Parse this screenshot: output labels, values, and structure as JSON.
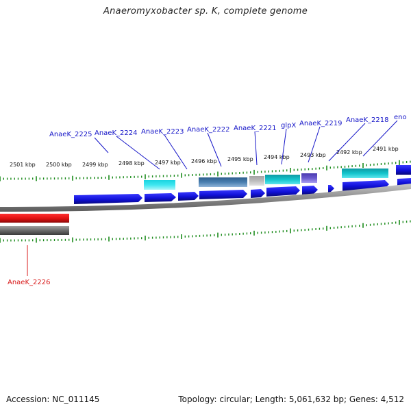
{
  "title": "Anaeromyxobacter sp. K, complete genome",
  "footer": {
    "accession": "Accession: NC_011145",
    "summary": "Topology: circular; Length: 5,061,632 bp; Genes: 4,512"
  },
  "scale_labels": [
    "2501 kbp",
    "2500 kbp",
    "2499 kbp",
    "2498 kbp",
    "2497 kbp",
    "2496 kbp",
    "2495 kbp",
    "2494 kbp",
    "2493 kbp",
    "2492 kbp",
    "2491 kbp"
  ],
  "gene_labels": [
    {
      "text": "AnaeK_2225",
      "strand": "plus"
    },
    {
      "text": "AnaeK_2224",
      "strand": "plus"
    },
    {
      "text": "AnaeK_2223",
      "strand": "plus"
    },
    {
      "text": "AnaeK_2222",
      "strand": "plus"
    },
    {
      "text": "AnaeK_2221",
      "strand": "plus"
    },
    {
      "text": "glpX",
      "strand": "plus"
    },
    {
      "text": "AnaeK_2219",
      "strand": "plus"
    },
    {
      "text": "AnaeK_2218",
      "strand": "plus"
    },
    {
      "text": "eno",
      "strand": "plus"
    },
    {
      "text": "AnaeK_2226",
      "strand": "minus"
    }
  ],
  "colors": {
    "gene_forward": "#1010d8",
    "gene_reverse": "#e01010",
    "label_forward": "#1515c8",
    "label_reverse": "#d81818",
    "tick": "#1a8a1a",
    "backbone": "#8c8c8c",
    "feature_cyan": "#12c4cc",
    "feature_lightcyan": "#3ee6f0",
    "feature_steel": "#4a7fb0",
    "feature_gray": "#b8b8b8",
    "feature_purple": "#6a5acd"
  }
}
